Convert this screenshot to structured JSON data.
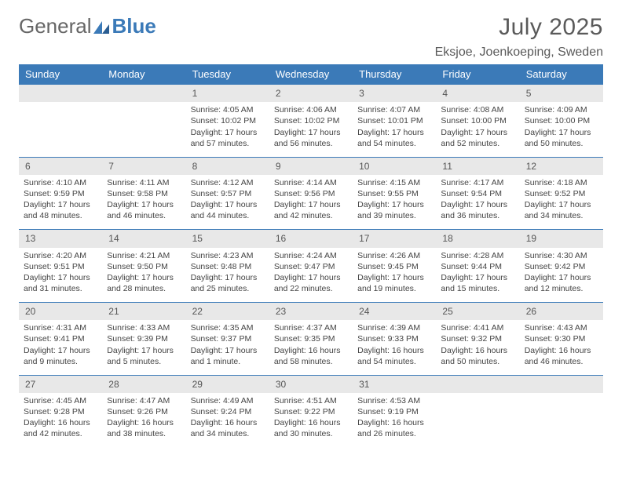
{
  "logo": {
    "word1": "General",
    "word2": "Blue"
  },
  "header": {
    "title": "July 2025",
    "location": "Eksjoe, Joenkoeping, Sweden"
  },
  "colors": {
    "brand_blue": "#3b7ab8",
    "header_gray": "#e8e8e8",
    "text": "#444444",
    "title_text": "#5a5a5a",
    "bg": "#ffffff"
  },
  "weekdays": [
    "Sunday",
    "Monday",
    "Tuesday",
    "Wednesday",
    "Thursday",
    "Friday",
    "Saturday"
  ],
  "weeks": [
    {
      "days": [
        null,
        null,
        {
          "n": "1",
          "sr": "Sunrise: 4:05 AM",
          "ss": "Sunset: 10:02 PM",
          "dl": "Daylight: 17 hours and 57 minutes."
        },
        {
          "n": "2",
          "sr": "Sunrise: 4:06 AM",
          "ss": "Sunset: 10:02 PM",
          "dl": "Daylight: 17 hours and 56 minutes."
        },
        {
          "n": "3",
          "sr": "Sunrise: 4:07 AM",
          "ss": "Sunset: 10:01 PM",
          "dl": "Daylight: 17 hours and 54 minutes."
        },
        {
          "n": "4",
          "sr": "Sunrise: 4:08 AM",
          "ss": "Sunset: 10:00 PM",
          "dl": "Daylight: 17 hours and 52 minutes."
        },
        {
          "n": "5",
          "sr": "Sunrise: 4:09 AM",
          "ss": "Sunset: 10:00 PM",
          "dl": "Daylight: 17 hours and 50 minutes."
        }
      ]
    },
    {
      "days": [
        {
          "n": "6",
          "sr": "Sunrise: 4:10 AM",
          "ss": "Sunset: 9:59 PM",
          "dl": "Daylight: 17 hours and 48 minutes."
        },
        {
          "n": "7",
          "sr": "Sunrise: 4:11 AM",
          "ss": "Sunset: 9:58 PM",
          "dl": "Daylight: 17 hours and 46 minutes."
        },
        {
          "n": "8",
          "sr": "Sunrise: 4:12 AM",
          "ss": "Sunset: 9:57 PM",
          "dl": "Daylight: 17 hours and 44 minutes."
        },
        {
          "n": "9",
          "sr": "Sunrise: 4:14 AM",
          "ss": "Sunset: 9:56 PM",
          "dl": "Daylight: 17 hours and 42 minutes."
        },
        {
          "n": "10",
          "sr": "Sunrise: 4:15 AM",
          "ss": "Sunset: 9:55 PM",
          "dl": "Daylight: 17 hours and 39 minutes."
        },
        {
          "n": "11",
          "sr": "Sunrise: 4:17 AM",
          "ss": "Sunset: 9:54 PM",
          "dl": "Daylight: 17 hours and 36 minutes."
        },
        {
          "n": "12",
          "sr": "Sunrise: 4:18 AM",
          "ss": "Sunset: 9:52 PM",
          "dl": "Daylight: 17 hours and 34 minutes."
        }
      ]
    },
    {
      "days": [
        {
          "n": "13",
          "sr": "Sunrise: 4:20 AM",
          "ss": "Sunset: 9:51 PM",
          "dl": "Daylight: 17 hours and 31 minutes."
        },
        {
          "n": "14",
          "sr": "Sunrise: 4:21 AM",
          "ss": "Sunset: 9:50 PM",
          "dl": "Daylight: 17 hours and 28 minutes."
        },
        {
          "n": "15",
          "sr": "Sunrise: 4:23 AM",
          "ss": "Sunset: 9:48 PM",
          "dl": "Daylight: 17 hours and 25 minutes."
        },
        {
          "n": "16",
          "sr": "Sunrise: 4:24 AM",
          "ss": "Sunset: 9:47 PM",
          "dl": "Daylight: 17 hours and 22 minutes."
        },
        {
          "n": "17",
          "sr": "Sunrise: 4:26 AM",
          "ss": "Sunset: 9:45 PM",
          "dl": "Daylight: 17 hours and 19 minutes."
        },
        {
          "n": "18",
          "sr": "Sunrise: 4:28 AM",
          "ss": "Sunset: 9:44 PM",
          "dl": "Daylight: 17 hours and 15 minutes."
        },
        {
          "n": "19",
          "sr": "Sunrise: 4:30 AM",
          "ss": "Sunset: 9:42 PM",
          "dl": "Daylight: 17 hours and 12 minutes."
        }
      ]
    },
    {
      "days": [
        {
          "n": "20",
          "sr": "Sunrise: 4:31 AM",
          "ss": "Sunset: 9:41 PM",
          "dl": "Daylight: 17 hours and 9 minutes."
        },
        {
          "n": "21",
          "sr": "Sunrise: 4:33 AM",
          "ss": "Sunset: 9:39 PM",
          "dl": "Daylight: 17 hours and 5 minutes."
        },
        {
          "n": "22",
          "sr": "Sunrise: 4:35 AM",
          "ss": "Sunset: 9:37 PM",
          "dl": "Daylight: 17 hours and 1 minute."
        },
        {
          "n": "23",
          "sr": "Sunrise: 4:37 AM",
          "ss": "Sunset: 9:35 PM",
          "dl": "Daylight: 16 hours and 58 minutes."
        },
        {
          "n": "24",
          "sr": "Sunrise: 4:39 AM",
          "ss": "Sunset: 9:33 PM",
          "dl": "Daylight: 16 hours and 54 minutes."
        },
        {
          "n": "25",
          "sr": "Sunrise: 4:41 AM",
          "ss": "Sunset: 9:32 PM",
          "dl": "Daylight: 16 hours and 50 minutes."
        },
        {
          "n": "26",
          "sr": "Sunrise: 4:43 AM",
          "ss": "Sunset: 9:30 PM",
          "dl": "Daylight: 16 hours and 46 minutes."
        }
      ]
    },
    {
      "days": [
        {
          "n": "27",
          "sr": "Sunrise: 4:45 AM",
          "ss": "Sunset: 9:28 PM",
          "dl": "Daylight: 16 hours and 42 minutes."
        },
        {
          "n": "28",
          "sr": "Sunrise: 4:47 AM",
          "ss": "Sunset: 9:26 PM",
          "dl": "Daylight: 16 hours and 38 minutes."
        },
        {
          "n": "29",
          "sr": "Sunrise: 4:49 AM",
          "ss": "Sunset: 9:24 PM",
          "dl": "Daylight: 16 hours and 34 minutes."
        },
        {
          "n": "30",
          "sr": "Sunrise: 4:51 AM",
          "ss": "Sunset: 9:22 PM",
          "dl": "Daylight: 16 hours and 30 minutes."
        },
        {
          "n": "31",
          "sr": "Sunrise: 4:53 AM",
          "ss": "Sunset: 9:19 PM",
          "dl": "Daylight: 16 hours and 26 minutes."
        },
        null,
        null
      ]
    }
  ]
}
